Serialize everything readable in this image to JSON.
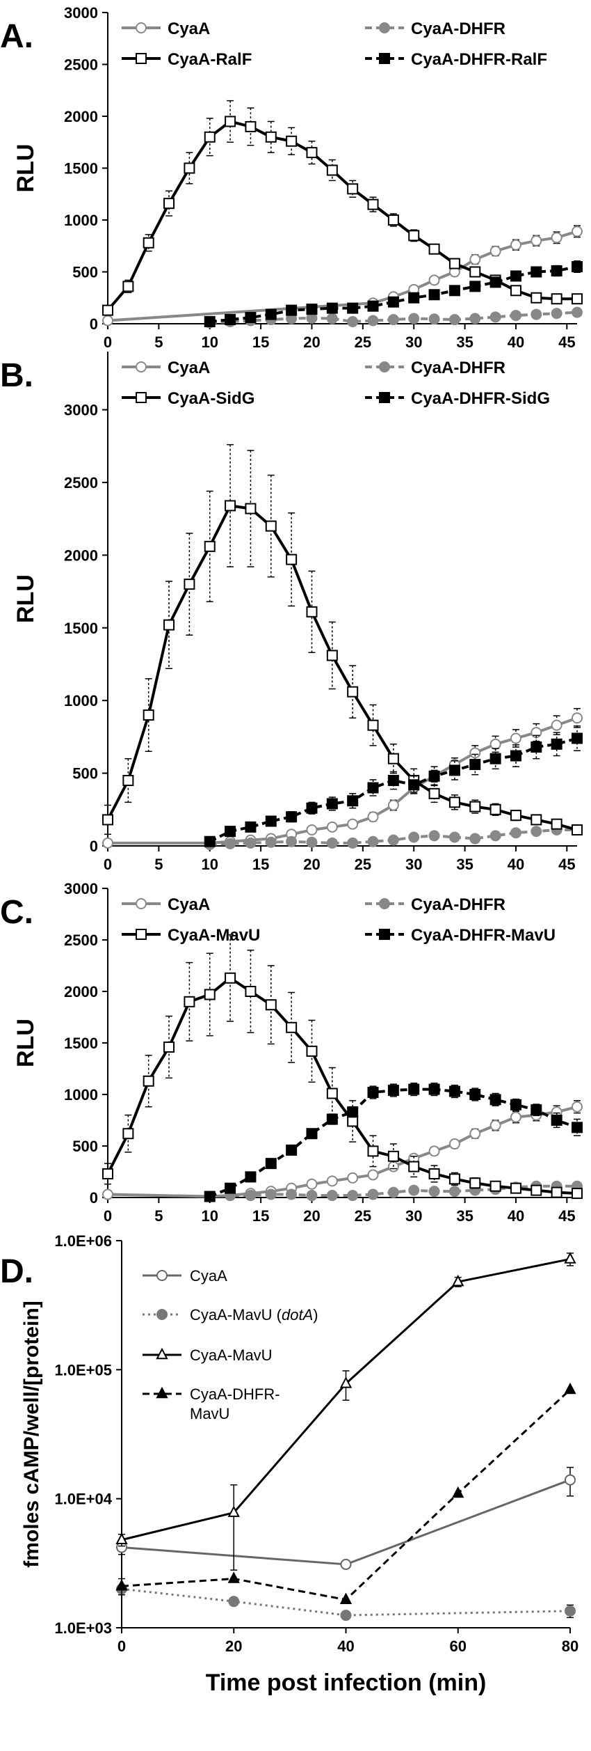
{
  "chart_data": [
    {
      "panel": "A.",
      "type": "line",
      "ylabel": "RLU",
      "xlim": [
        0,
        46
      ],
      "ylim": [
        0,
        3000
      ],
      "xticks": [
        0,
        5,
        10,
        15,
        20,
        25,
        30,
        35,
        40,
        45
      ],
      "yticks": [
        0,
        500,
        1000,
        1500,
        2000,
        2500,
        3000
      ],
      "legend": "top, two columns",
      "series": [
        {
          "name": "CyaA",
          "color": "#888888",
          "dash": "solid",
          "marker": "circle-open",
          "x": [
            0,
            26,
            28,
            30,
            32,
            34,
            36,
            38,
            40,
            42,
            44,
            46
          ],
          "y": [
            30,
            200,
            260,
            330,
            420,
            500,
            620,
            700,
            760,
            800,
            830,
            890
          ],
          "err": [
            0,
            25,
            30,
            35,
            35,
            40,
            45,
            45,
            50,
            50,
            55,
            55
          ]
        },
        {
          "name": "CyaA-DHFR",
          "color": "#888888",
          "dash": "dashed",
          "marker": "circle-filled",
          "x": [
            10,
            12,
            14,
            16,
            18,
            20,
            22,
            24,
            26,
            28,
            30,
            32,
            34,
            36,
            38,
            40,
            42,
            44,
            46
          ],
          "y": [
            10,
            20,
            30,
            40,
            50,
            55,
            50,
            20,
            30,
            40,
            50,
            45,
            40,
            50,
            65,
            80,
            90,
            100,
            110
          ],
          "err": [
            0,
            5,
            5,
            10,
            10,
            10,
            10,
            5,
            5,
            10,
            10,
            10,
            10,
            10,
            12,
            12,
            15,
            15,
            15
          ]
        },
        {
          "name": "CyaA-RalF",
          "color": "#000000",
          "dash": "solid",
          "marker": "square-open",
          "x": [
            0,
            2,
            4,
            6,
            8,
            10,
            12,
            14,
            16,
            18,
            20,
            22,
            24,
            26,
            28,
            30,
            32,
            34,
            36,
            38,
            40,
            42,
            44,
            46
          ],
          "y": [
            130,
            360,
            780,
            1160,
            1500,
            1800,
            1950,
            1900,
            1800,
            1760,
            1650,
            1480,
            1300,
            1150,
            1000,
            850,
            720,
            580,
            500,
            420,
            320,
            250,
            240,
            240
          ],
          "err": [
            30,
            60,
            80,
            120,
            150,
            180,
            200,
            180,
            150,
            130,
            110,
            100,
            80,
            70,
            60,
            55,
            45,
            40,
            35,
            30,
            28,
            25,
            22,
            20
          ]
        },
        {
          "name": "CyaA-DHFR-RalF",
          "color": "#000000",
          "dash": "dashed",
          "marker": "square-filled",
          "x": [
            10,
            12,
            14,
            16,
            18,
            20,
            22,
            24,
            26,
            28,
            30,
            32,
            34,
            36,
            38,
            40,
            42,
            44,
            46
          ],
          "y": [
            20,
            40,
            60,
            90,
            130,
            140,
            150,
            150,
            170,
            210,
            250,
            280,
            320,
            360,
            400,
            460,
            500,
            510,
            550
          ],
          "err": [
            0,
            8,
            10,
            12,
            15,
            18,
            20,
            20,
            25,
            25,
            30,
            30,
            35,
            35,
            40,
            45,
            45,
            50,
            55
          ]
        }
      ]
    },
    {
      "panel": "B.",
      "type": "line",
      "ylabel": "RLU",
      "xlim": [
        0,
        46
      ],
      "ylim": [
        0,
        3400
      ],
      "xticks": [
        0,
        5,
        10,
        15,
        20,
        25,
        30,
        35,
        40,
        45
      ],
      "yticks": [
        0,
        500,
        1000,
        1500,
        2000,
        2500,
        3000
      ],
      "legend": "top, two columns",
      "series": [
        {
          "name": "CyaA",
          "color": "#888888",
          "dash": "solid",
          "marker": "circle-open",
          "x": [
            0,
            10,
            12,
            14,
            16,
            18,
            20,
            22,
            24,
            26,
            28,
            30,
            32,
            34,
            36,
            38,
            40,
            42,
            44,
            46
          ],
          "y": [
            20,
            20,
            30,
            40,
            50,
            80,
            110,
            130,
            150,
            200,
            280,
            400,
            480,
            560,
            640,
            700,
            740,
            780,
            830,
            880
          ],
          "err": [
            0,
            0,
            5,
            5,
            10,
            15,
            20,
            20,
            25,
            30,
            35,
            40,
            40,
            45,
            50,
            55,
            60,
            60,
            65,
            65
          ]
        },
        {
          "name": "CyaA-DHFR",
          "color": "#888888",
          "dash": "dashed",
          "marker": "circle-filled",
          "x": [
            10,
            12,
            14,
            16,
            18,
            20,
            22,
            24,
            26,
            28,
            30,
            32,
            34,
            36,
            38,
            40,
            42,
            44,
            46
          ],
          "y": [
            10,
            15,
            20,
            25,
            30,
            25,
            20,
            20,
            30,
            40,
            60,
            70,
            60,
            50,
            70,
            90,
            100,
            110,
            110
          ],
          "err": [
            0,
            5,
            5,
            5,
            5,
            5,
            5,
            5,
            10,
            10,
            15,
            15,
            15,
            12,
            15,
            18,
            20,
            20,
            20
          ]
        },
        {
          "name": "CyaA-SidG",
          "color": "#000000",
          "dash": "solid",
          "marker": "square-open",
          "x": [
            0,
            2,
            4,
            6,
            8,
            10,
            12,
            14,
            16,
            18,
            20,
            22,
            24,
            26,
            28,
            30,
            32,
            34,
            36,
            38,
            40,
            42,
            44,
            46
          ],
          "y": [
            180,
            450,
            900,
            1520,
            1800,
            2060,
            2340,
            2320,
            2200,
            1970,
            1610,
            1310,
            1060,
            830,
            600,
            450,
            360,
            300,
            270,
            250,
            210,
            180,
            150,
            110
          ],
          "err": [
            100,
            150,
            250,
            300,
            350,
            380,
            420,
            400,
            350,
            320,
            280,
            230,
            180,
            140,
            100,
            80,
            60,
            50,
            45,
            40,
            35,
            30,
            25,
            20
          ]
        },
        {
          "name": "CyaA-DHFR-SidG",
          "color": "#000000",
          "dash": "dashed",
          "marker": "square-filled",
          "x": [
            10,
            12,
            14,
            16,
            18,
            20,
            22,
            24,
            26,
            28,
            30,
            32,
            34,
            36,
            38,
            40,
            42,
            44,
            46
          ],
          "y": [
            30,
            100,
            130,
            170,
            200,
            260,
            290,
            310,
            400,
            450,
            420,
            480,
            520,
            560,
            600,
            620,
            680,
            700,
            740
          ],
          "err": [
            0,
            20,
            25,
            30,
            35,
            40,
            45,
            50,
            55,
            60,
            60,
            65,
            65,
            70,
            70,
            75,
            80,
            80,
            85
          ]
        }
      ]
    },
    {
      "panel": "C.",
      "type": "line",
      "ylabel": "RLU",
      "xlim": [
        0,
        46
      ],
      "ylim": [
        0,
        3000
      ],
      "xticks": [
        0,
        5,
        10,
        15,
        20,
        25,
        30,
        35,
        40,
        45
      ],
      "yticks": [
        0,
        500,
        1000,
        1500,
        2000,
        2500,
        3000
      ],
      "legend": "top, two columns",
      "series": [
        {
          "name": "CyaA",
          "color": "#888888",
          "dash": "solid",
          "marker": "circle-open",
          "x": [
            0,
            10,
            12,
            14,
            16,
            18,
            20,
            22,
            24,
            26,
            28,
            30,
            32,
            34,
            36,
            38,
            40,
            42,
            44,
            46
          ],
          "y": [
            30,
            10,
            20,
            40,
            60,
            90,
            130,
            160,
            190,
            220,
            300,
            380,
            450,
            520,
            620,
            700,
            780,
            800,
            830,
            880
          ],
          "err": [
            0,
            0,
            5,
            5,
            10,
            15,
            20,
            20,
            25,
            25,
            30,
            35,
            40,
            40,
            45,
            50,
            55,
            55,
            60,
            60
          ]
        },
        {
          "name": "CyaA-DHFR",
          "color": "#888888",
          "dash": "dashed",
          "marker": "circle-filled",
          "x": [
            10,
            12,
            14,
            16,
            18,
            20,
            22,
            24,
            26,
            28,
            30,
            32,
            34,
            36,
            38,
            40,
            42,
            44,
            46
          ],
          "y": [
            10,
            20,
            20,
            30,
            30,
            20,
            20,
            20,
            30,
            50,
            70,
            60,
            60,
            70,
            80,
            100,
            110,
            110,
            110
          ],
          "err": [
            0,
            5,
            5,
            5,
            5,
            5,
            5,
            5,
            10,
            10,
            15,
            15,
            15,
            15,
            15,
            18,
            20,
            20,
            20
          ]
        },
        {
          "name": "CyaA-MavU",
          "color": "#000000",
          "dash": "solid",
          "marker": "square-open",
          "x": [
            0,
            2,
            4,
            6,
            8,
            10,
            12,
            14,
            16,
            18,
            20,
            22,
            24,
            26,
            28,
            30,
            32,
            34,
            36,
            38,
            40,
            42,
            44,
            46
          ],
          "y": [
            230,
            620,
            1130,
            1460,
            1900,
            1970,
            2130,
            2000,
            1870,
            1650,
            1420,
            1010,
            740,
            450,
            400,
            300,
            230,
            180,
            140,
            110,
            90,
            70,
            50,
            40
          ],
          "err": [
            100,
            180,
            250,
            300,
            380,
            400,
            420,
            400,
            380,
            340,
            300,
            250,
            200,
            150,
            120,
            100,
            80,
            60,
            50,
            40,
            35,
            30,
            25,
            20
          ]
        },
        {
          "name": "CyaA-DHFR-MavU",
          "color": "#000000",
          "dash": "dashed",
          "marker": "square-filled",
          "x": [
            10,
            12,
            14,
            16,
            18,
            20,
            22,
            24,
            26,
            28,
            30,
            32,
            34,
            36,
            38,
            40,
            42,
            44,
            46
          ],
          "y": [
            10,
            90,
            200,
            330,
            460,
            620,
            760,
            830,
            1020,
            1040,
            1050,
            1050,
            1030,
            1000,
            950,
            900,
            850,
            750,
            680
          ],
          "err": [
            0,
            20,
            30,
            35,
            40,
            45,
            50,
            50,
            60,
            60,
            60,
            60,
            60,
            60,
            60,
            55,
            55,
            70,
            80
          ]
        }
      ]
    },
    {
      "panel": "D.",
      "type": "line",
      "xlabel": "Time post infection (min)",
      "ylabel": "fmoles cAMP/well/[protein]",
      "yscale": "log",
      "xlim": [
        0,
        80
      ],
      "ylim": [
        1000,
        1000000
      ],
      "xticks": [
        0,
        20,
        40,
        60,
        80
      ],
      "yticks": [
        1000,
        10000,
        100000,
        1000000
      ],
      "ytick_labels": [
        "1.0E+03",
        "1.0E+04",
        "1.0E+05",
        "1.0E+06"
      ],
      "legend": "top-left",
      "series": [
        {
          "name": "CyaA",
          "color": "#666666",
          "dash": "solid",
          "marker": "circle-open",
          "x": [
            0,
            40,
            80
          ],
          "y": [
            4200,
            3100,
            14000
          ],
          "err": [
            500,
            0,
            3500
          ]
        },
        {
          "name_parts": [
            "CyaA-MavU (",
            "dotA",
            ")"
          ],
          "color": "#777777",
          "dash": "dotted",
          "marker": "circle-filled",
          "x": [
            0,
            20,
            40,
            80
          ],
          "y": [
            2000,
            1600,
            1250,
            1350
          ],
          "err": [
            0,
            0,
            0,
            150
          ]
        },
        {
          "name": "CyaA-MavU",
          "color": "#000000",
          "dash": "solid",
          "marker": "triangle-open",
          "x": [
            0,
            20,
            40,
            60,
            80
          ],
          "y": [
            4800,
            7800,
            78000,
            480000,
            720000
          ],
          "err": [
            500,
            5000,
            20000,
            40000,
            80000
          ]
        },
        {
          "name_lines": [
            "CyaA-DHFR-",
            "MavU"
          ],
          "color": "#000000",
          "dash": "dashed",
          "marker": "triangle-filled",
          "x": [
            0,
            20,
            40,
            60,
            80
          ],
          "y": [
            2100,
            2400,
            1650,
            11000,
            70000
          ],
          "err": [
            300,
            0,
            0,
            0,
            0
          ]
        }
      ]
    }
  ]
}
